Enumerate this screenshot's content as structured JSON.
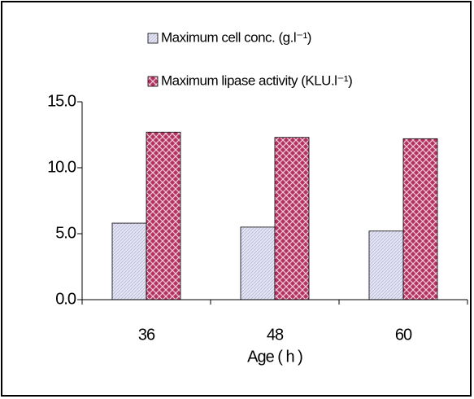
{
  "chart_data": {
    "type": "bar",
    "categories": [
      "36",
      "48",
      "60"
    ],
    "x_label": "Age ( h )",
    "series": [
      {
        "name": "Maximum cell conc. (g.l⁻¹)",
        "color": "#e4e4f6",
        "values": [
          5.8,
          5.5,
          5.2
        ]
      },
      {
        "name": "Maximum lipase activity (KLU.l⁻¹)",
        "color": "#b3325f",
        "values": [
          12.7,
          12.3,
          12.2
        ]
      }
    ],
    "ylim": [
      0,
      15
    ],
    "yticks": [
      {
        "value": 0,
        "label": "0.0"
      },
      {
        "value": 5,
        "label": "5.0"
      },
      {
        "value": 10,
        "label": "10.0"
      },
      {
        "value": 15,
        "label": "15.0"
      }
    ],
    "grid": false
  }
}
